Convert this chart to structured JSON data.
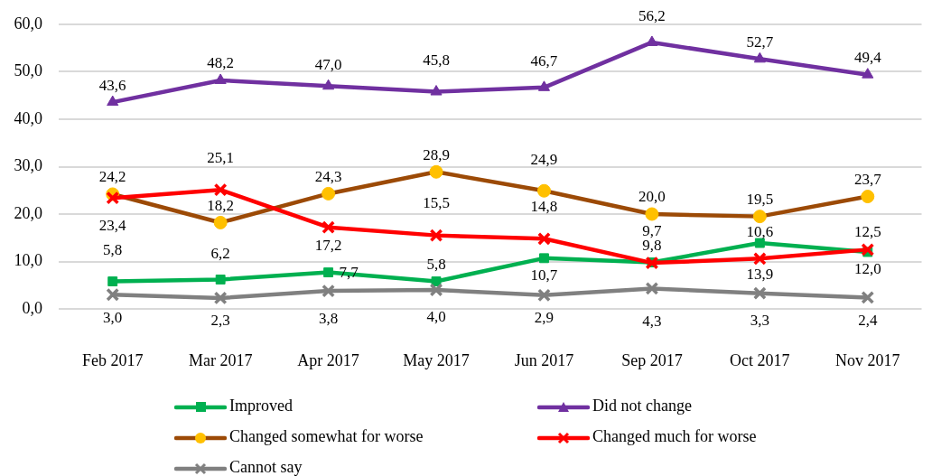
{
  "chart_data": {
    "type": "line",
    "categories": [
      "Feb 2017",
      "Mar 2017",
      "Apr 2017",
      "May 2017",
      "Jun 2017",
      "Sep 2017",
      "Oct 2017",
      "Nov 2017"
    ],
    "series": [
      {
        "name": "Improved",
        "color": "#00b050",
        "marker": "square",
        "values": [
          5.8,
          6.2,
          7.7,
          5.8,
          10.7,
          9.8,
          13.9,
          12.0
        ],
        "value_labels": [
          "5,8",
          "6,2",
          "7,7",
          "5,8",
          "10,7",
          "9,8",
          "13,9",
          "12,0"
        ]
      },
      {
        "name": "Did not change",
        "color": "#7030a0",
        "marker": "triangle",
        "values": [
          43.6,
          48.2,
          47.0,
          45.8,
          46.7,
          56.2,
          52.7,
          49.4
        ],
        "value_labels": [
          "43,6",
          "48,2",
          "47,0",
          "45,8",
          "46,7",
          "56,2",
          "52,7",
          "49,4"
        ]
      },
      {
        "name": "Changed somewhat for worse",
        "color": "#9c4a06",
        "colors": [
          "#ffc000",
          "#ffc000",
          "#ffc000",
          "#ffc000",
          "#ffc000",
          "#ffc000",
          "#ffc000",
          "#ffc000"
        ],
        "marker": "circle",
        "values": [
          24.2,
          18.2,
          24.3,
          28.9,
          24.9,
          20.0,
          19.5,
          23.7
        ],
        "value_labels": [
          "24,2",
          "18,2",
          "24,3",
          "28,9",
          "24,9",
          "20,0",
          "19,5",
          "23,7"
        ]
      },
      {
        "name": "Changed much for worse",
        "color": "#ff0000",
        "marker": "cross",
        "values": [
          23.4,
          25.1,
          17.2,
          15.5,
          14.8,
          9.7,
          10.6,
          12.5
        ],
        "value_labels": [
          "23,4",
          "25,1",
          "17,2",
          "15,5",
          "14,8",
          "9,7",
          "10,6",
          "12,5"
        ]
      },
      {
        "name": "Cannot say",
        "color": "#808080",
        "marker": "cross",
        "values": [
          3.0,
          2.3,
          3.8,
          4.0,
          2.9,
          4.3,
          3.3,
          2.4
        ],
        "value_labels": [
          "3,0",
          "2,3",
          "3,8",
          "4,0",
          "2,9",
          "4,3",
          "3,3",
          "2,4"
        ]
      }
    ],
    "ylim": [
      0,
      60
    ],
    "yticks": [
      {
        "value": 0,
        "label": "0,0"
      },
      {
        "value": 10,
        "label": "10,0"
      },
      {
        "value": 20,
        "label": "20,0"
      },
      {
        "value": 30,
        "label": "30,0"
      },
      {
        "value": 40,
        "label": "40,0"
      },
      {
        "value": 50,
        "label": "50,0"
      },
      {
        "value": 60,
        "label": "60,0"
      }
    ],
    "grid": "y",
    "legend": "bottom",
    "line_style": "solid"
  }
}
